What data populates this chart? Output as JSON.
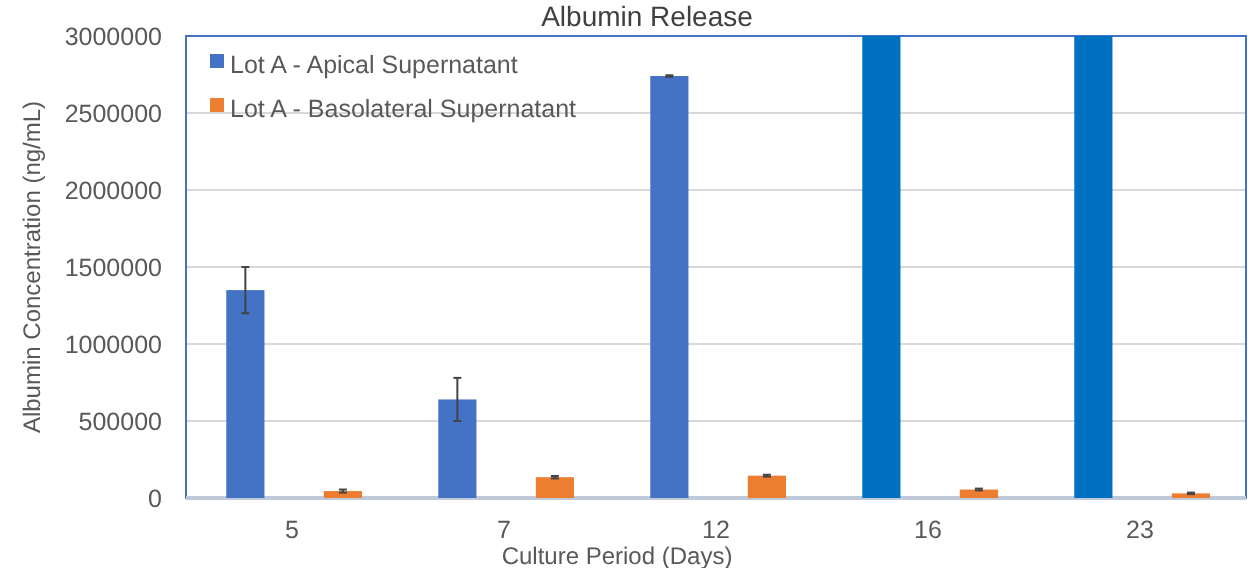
{
  "chart_data": {
    "type": "bar",
    "title": "Albumin Release",
    "xlabel": "Culture Period (Days)",
    "ylabel": "Albumin Concentration (ng/mL)",
    "categories": [
      "5",
      "7",
      "12",
      "16",
      "23"
    ],
    "series": [
      {
        "name": "Lot A - Apical Supernatant",
        "color": "#4472c4",
        "colors": [
          "#4472c4",
          "#4472c4",
          "#4472c4",
          "#0070c0",
          "#0070c0"
        ],
        "values": [
          1350000,
          640000,
          2740000,
          3000000,
          3000000
        ],
        "errors": [
          150000,
          140000,
          5000,
          null,
          null
        ]
      },
      {
        "name": "Lot A - Basolateral Supernatant",
        "color": "#ed7d31",
        "values": [
          45000,
          135000,
          145000,
          55000,
          30000
        ],
        "errors": [
          10000,
          8000,
          6000,
          6000,
          5000
        ]
      }
    ],
    "ylim": [
      0,
      3000000
    ],
    "yticks": [
      0,
      500000,
      1000000,
      1500000,
      2000000,
      2500000,
      3000000
    ],
    "grid": "y",
    "legend": "top left"
  }
}
